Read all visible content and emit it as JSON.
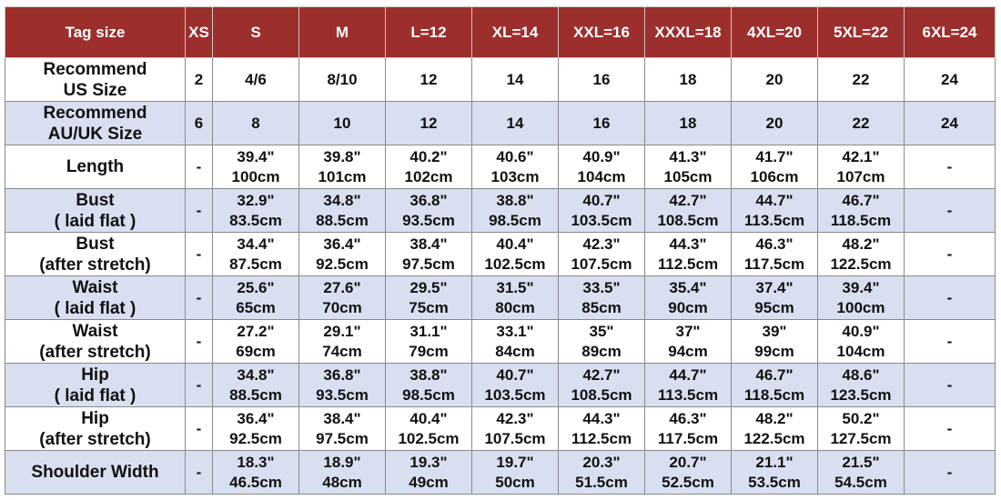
{
  "header": {
    "label": "Tag size",
    "sizes": [
      "XS",
      "S",
      "M",
      "L=12",
      "XL=14",
      "XXL=16",
      "XXXL=18",
      "4XL=20",
      "5XL=22",
      "6XL=24"
    ]
  },
  "rows": [
    {
      "label": [
        "Recommend",
        "US Size"
      ],
      "cells": [
        [
          "2"
        ],
        [
          "4/6"
        ],
        [
          "8/10"
        ],
        [
          "12"
        ],
        [
          "14"
        ],
        [
          "16"
        ],
        [
          "18"
        ],
        [
          "20"
        ],
        [
          "22"
        ],
        [
          "24"
        ]
      ]
    },
    {
      "label": [
        "Recommend",
        "AU/UK Size"
      ],
      "cells": [
        [
          "6"
        ],
        [
          "8"
        ],
        [
          "10"
        ],
        [
          "12"
        ],
        [
          "14"
        ],
        [
          "16"
        ],
        [
          "18"
        ],
        [
          "20"
        ],
        [
          "22"
        ],
        [
          "24"
        ]
      ]
    },
    {
      "label": [
        "Length"
      ],
      "cells": [
        [
          "-"
        ],
        [
          "39.4\"",
          "100cm"
        ],
        [
          "39.8\"",
          "101cm"
        ],
        [
          "40.2\"",
          "102cm"
        ],
        [
          "40.6\"",
          "103cm"
        ],
        [
          "40.9\"",
          "104cm"
        ],
        [
          "41.3\"",
          "105cm"
        ],
        [
          "41.7\"",
          "106cm"
        ],
        [
          "42.1\"",
          "107cm"
        ],
        [
          "-"
        ]
      ]
    },
    {
      "label": [
        "Bust",
        "( laid flat )"
      ],
      "cells": [
        [
          "-"
        ],
        [
          "32.9\"",
          "83.5cm"
        ],
        [
          "34.8\"",
          "88.5cm"
        ],
        [
          "36.8\"",
          "93.5cm"
        ],
        [
          "38.8\"",
          "98.5cm"
        ],
        [
          "40.7\"",
          "103.5cm"
        ],
        [
          "42.7\"",
          "108.5cm"
        ],
        [
          "44.7\"",
          "113.5cm"
        ],
        [
          "46.7\"",
          "118.5cm"
        ],
        [
          "-"
        ]
      ]
    },
    {
      "label": [
        "Bust",
        "(after stretch)"
      ],
      "cells": [
        [
          "-"
        ],
        [
          "34.4\"",
          "87.5cm"
        ],
        [
          "36.4\"",
          "92.5cm"
        ],
        [
          "38.4\"",
          "97.5cm"
        ],
        [
          "40.4\"",
          "102.5cm"
        ],
        [
          "42.3\"",
          "107.5cm"
        ],
        [
          "44.3\"",
          "112.5cm"
        ],
        [
          "46.3\"",
          "117.5cm"
        ],
        [
          "48.2\"",
          "122.5cm"
        ],
        [
          "-"
        ]
      ]
    },
    {
      "label": [
        "Waist",
        "( laid flat )"
      ],
      "cells": [
        [
          "-"
        ],
        [
          "25.6\"",
          "65cm"
        ],
        [
          "27.6\"",
          "70cm"
        ],
        [
          "29.5\"",
          "75cm"
        ],
        [
          "31.5\"",
          "80cm"
        ],
        [
          "33.5\"",
          "85cm"
        ],
        [
          "35.4\"",
          "90cm"
        ],
        [
          "37.4\"",
          "95cm"
        ],
        [
          "39.4\"",
          "100cm"
        ],
        [
          "-"
        ]
      ]
    },
    {
      "label": [
        "Waist",
        "(after stretch)"
      ],
      "cells": [
        [
          "-"
        ],
        [
          "27.2\"",
          "69cm"
        ],
        [
          "29.1\"",
          "74cm"
        ],
        [
          "31.1\"",
          "79cm"
        ],
        [
          "33.1\"",
          "84cm"
        ],
        [
          "35\"",
          "89cm"
        ],
        [
          "37\"",
          "94cm"
        ],
        [
          "39\"",
          "99cm"
        ],
        [
          "40.9\"",
          "104cm"
        ],
        [
          "-"
        ]
      ]
    },
    {
      "label": [
        "Hip",
        "( laid flat )"
      ],
      "cells": [
        [
          "-"
        ],
        [
          "34.8\"",
          "88.5cm"
        ],
        [
          "36.8\"",
          "93.5cm"
        ],
        [
          "38.8\"",
          "98.5cm"
        ],
        [
          "40.7\"",
          "103.5cm"
        ],
        [
          "42.7\"",
          "108.5cm"
        ],
        [
          "44.7\"",
          "113.5cm"
        ],
        [
          "46.7\"",
          "118.5cm"
        ],
        [
          "48.6\"",
          "123.5cm"
        ],
        [
          "-"
        ]
      ]
    },
    {
      "label": [
        "Hip",
        "(after stretch)"
      ],
      "cells": [
        [
          "-"
        ],
        [
          "36.4\"",
          "92.5cm"
        ],
        [
          "38.4\"",
          "97.5cm"
        ],
        [
          "40.4\"",
          "102.5cm"
        ],
        [
          "42.3\"",
          "107.5cm"
        ],
        [
          "44.3\"",
          "112.5cm"
        ],
        [
          "46.3\"",
          "117.5cm"
        ],
        [
          "48.2\"",
          "122.5cm"
        ],
        [
          "50.2\"",
          "127.5cm"
        ],
        [
          "-"
        ]
      ]
    },
    {
      "label": [
        "Shoulder Width"
      ],
      "cells": [
        [
          "-"
        ],
        [
          "18.3\"",
          "46.5cm"
        ],
        [
          "18.9\"",
          "48cm"
        ],
        [
          "19.3\"",
          "49cm"
        ],
        [
          "19.7\"",
          "50cm"
        ],
        [
          "20.3\"",
          "51.5cm"
        ],
        [
          "20.7\"",
          "52.5cm"
        ],
        [
          "21.1\"",
          "53.5cm"
        ],
        [
          "21.5\"",
          "54.5cm"
        ],
        [
          "-"
        ]
      ]
    }
  ],
  "colors": {
    "header_bg": "#9c2e2c",
    "header_text": "#ffffff",
    "alt_row_bg": "#d8dff0",
    "plain_row_bg": "#ffffff",
    "border": "#8a8a8a"
  }
}
